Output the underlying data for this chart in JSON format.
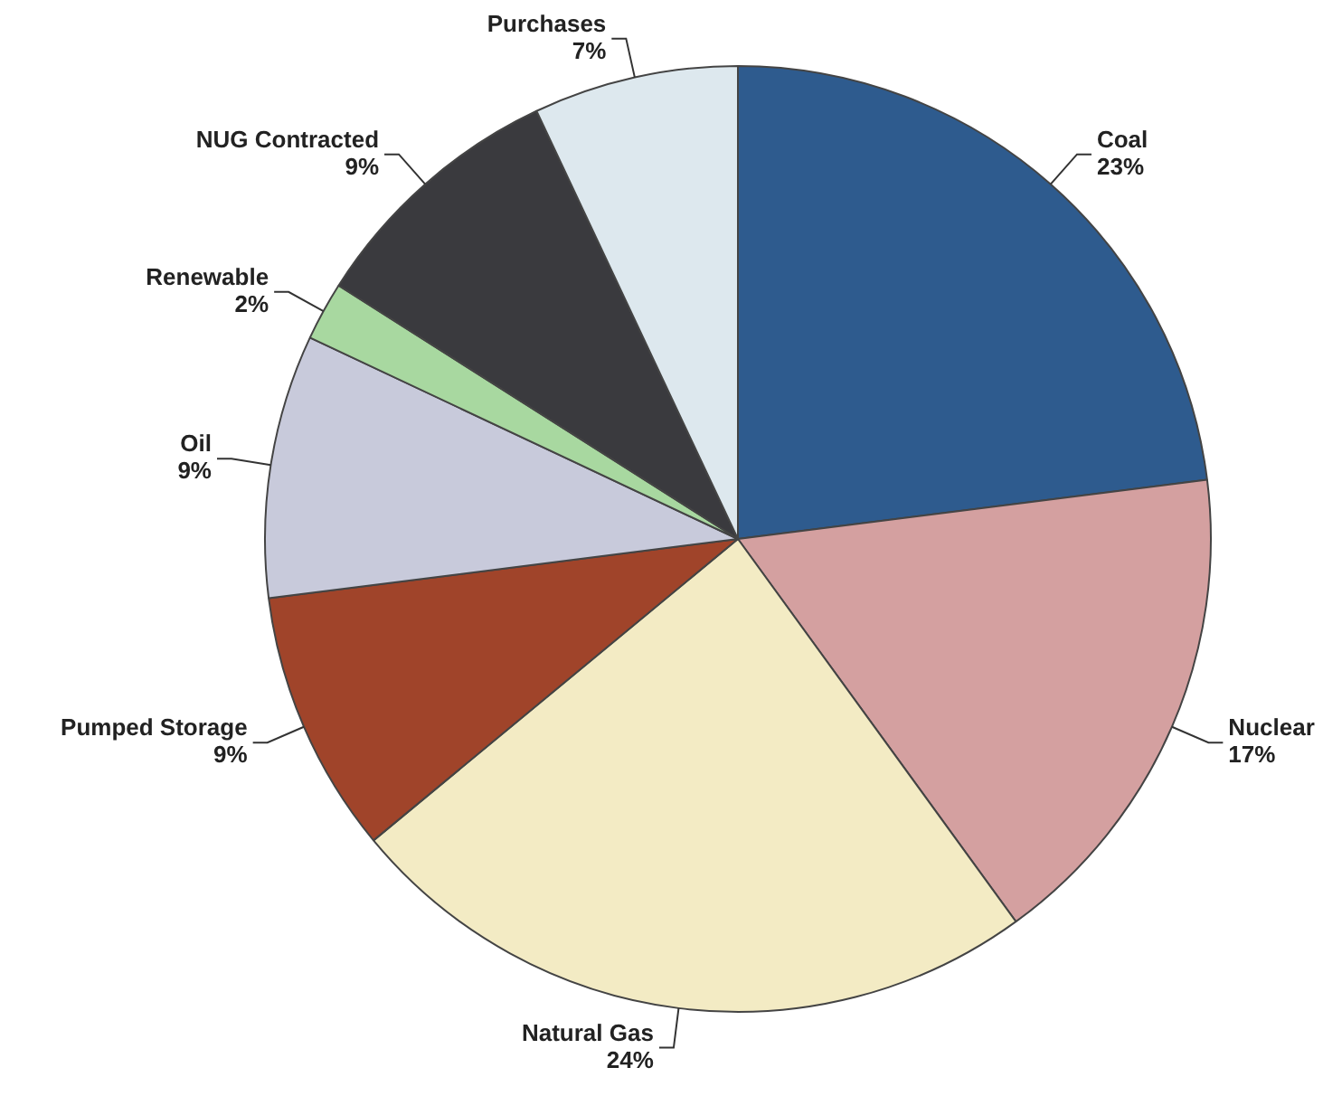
{
  "chart_data": {
    "type": "pie",
    "categories": [
      "Coal",
      "Nuclear",
      "Natural Gas",
      "Pumped Storage",
      "Oil",
      "Renewable",
      "NUG Contracted",
      "Purchases"
    ],
    "values": [
      23,
      17,
      24,
      9,
      9,
      2,
      9,
      7
    ],
    "value_labels": [
      "23%",
      "17%",
      "24%",
      "9%",
      "9%",
      "2%",
      "9%",
      "7%"
    ],
    "colors": [
      "#2e5b8e",
      "#d4a0a0",
      "#f3ebc4",
      "#a0442a",
      "#c8cadb",
      "#a8d8a0",
      "#3a3a3e",
      "#dde8ee"
    ],
    "legend": false
  }
}
